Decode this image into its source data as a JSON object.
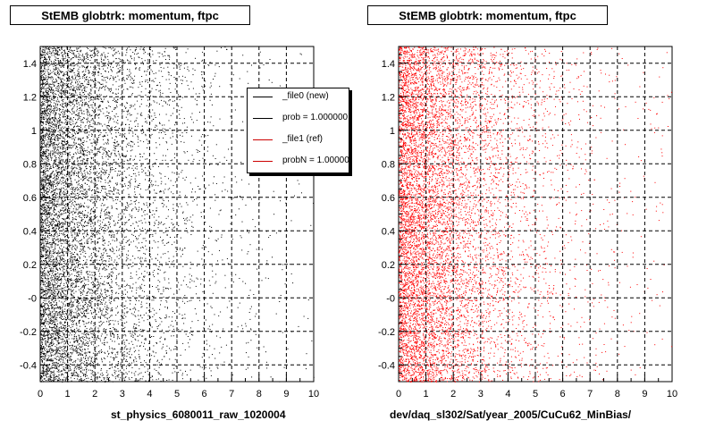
{
  "titles": {
    "left": "StEMB globtrk: momentum, ftpc",
    "right": "StEMB globtrk: momentum, ftpc"
  },
  "xlabels": {
    "left": "st_physics_6080011_raw_1020004",
    "right": "dev/daq_sl302/Sat/year_2005/CuCu62_MinBias/"
  },
  "legend": [
    {
      "label": "_file0 (new)",
      "color": "#000000"
    },
    {
      "label": "prob = 1.000000",
      "color": "#000000"
    },
    {
      "label": "_file1 (ref)",
      "color": "#cc0000"
    },
    {
      "label": "probN = 1.000000",
      "color": "#cc0000"
    }
  ],
  "footnote": "",
  "chart_data": [
    {
      "type": "scatter",
      "title": "StEMB globtrk: momentum, ftpc",
      "xlabel": "st_physics_6080011_raw_1020004",
      "ylabel": "",
      "xlim": [
        0,
        10
      ],
      "ylim": [
        -0.5,
        1.5
      ],
      "x_ticks": [
        "0",
        "1",
        "2",
        "3",
        "4",
        "5",
        "6",
        "7",
        "8",
        "9",
        "10"
      ],
      "y_ticks": [
        "-0.4",
        "-0.2",
        "-0",
        "0.2",
        "0.4",
        "0.6",
        "0.8",
        "1",
        "1.2",
        "1.4"
      ],
      "grid": true,
      "legend_position": "top-right",
      "series": [
        {
          "name": "_file0 (new)",
          "color": "#000000",
          "density_profile": "decreasing with x, dense at x<1"
        }
      ]
    },
    {
      "type": "scatter",
      "title": "StEMB globtrk: momentum, ftpc",
      "xlabel": "dev/daq_sl302/Sat/year_2005/CuCu62_MinBias/",
      "ylabel": "",
      "xlim": [
        0,
        10
      ],
      "ylim": [
        -0.5,
        1.5
      ],
      "x_ticks": [
        "0",
        "1",
        "2",
        "3",
        "4",
        "5",
        "6",
        "7",
        "8",
        "9",
        "10"
      ],
      "y_ticks": [
        "-0.4",
        "-0.2",
        "-0",
        "0.2",
        "0.4",
        "0.6",
        "0.8",
        "1",
        "1.2",
        "1.4"
      ],
      "grid": true,
      "series": [
        {
          "name": "_file1 (ref)",
          "color": "#ff0000",
          "density_profile": "decreasing with x, dense at x<1"
        }
      ]
    }
  ]
}
